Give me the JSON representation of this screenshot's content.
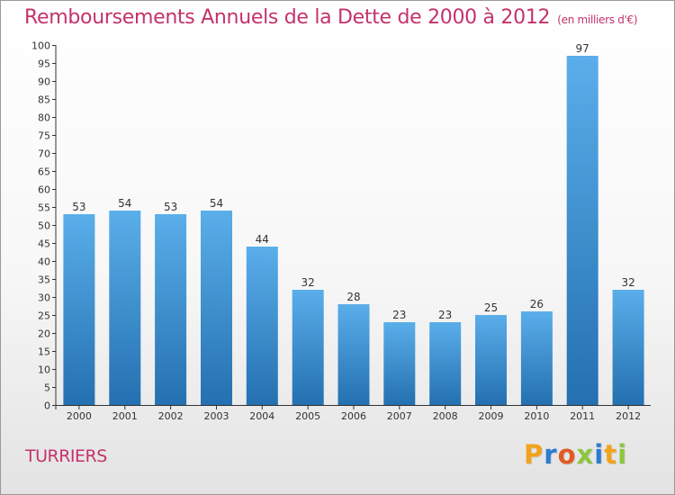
{
  "header": {
    "title": "Remboursements Annuels de la Dette de 2000 à 2012",
    "unit": "(en milliers d'€)"
  },
  "footer": {
    "commune": "TURRIERS",
    "logo": [
      "P",
      "r",
      "o",
      "x",
      "i",
      "t",
      "i"
    ]
  },
  "colors": {
    "title": "#c4336a",
    "bar_light": "#5aaeea",
    "bar_dark": "#2470b0",
    "logo": [
      "#f2a31b",
      "#2a7dcf",
      "#e05b22",
      "#8cc63f",
      "#2a7dcf",
      "#f2a31b",
      "#8cc63f"
    ]
  },
  "chart_data": {
    "type": "bar",
    "categories": [
      "2000",
      "2001",
      "2002",
      "2003",
      "2004",
      "2005",
      "2006",
      "2007",
      "2008",
      "2009",
      "2010",
      "2011",
      "2012"
    ],
    "values": [
      53,
      54,
      53,
      54,
      44,
      32,
      28,
      23,
      23,
      25,
      26,
      97,
      32
    ],
    "title": "Remboursements Annuels de la Dette de 2000 à 2012",
    "xlabel": "",
    "ylabel": "",
    "ylim": [
      0,
      100
    ],
    "ytick_step": 5,
    "grid": false
  }
}
